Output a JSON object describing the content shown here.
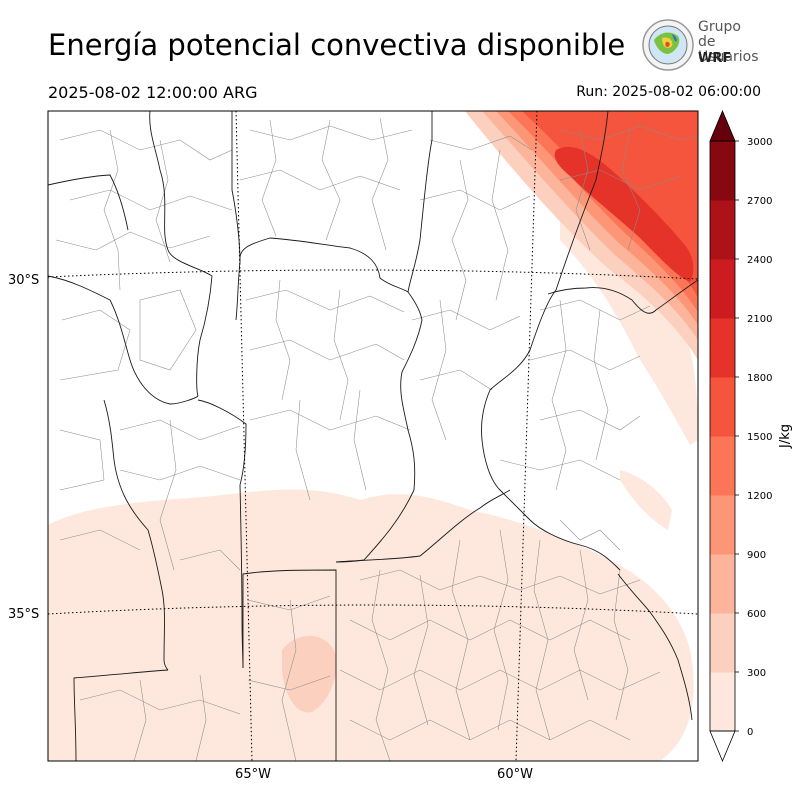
{
  "header": {
    "title": "Energía potencial convectiva disponible",
    "valid_time": "2025-08-02 12:00:00 ARG",
    "run_time": "Run: 2025-08-02 06:00:00"
  },
  "logo": {
    "line1": "Grupo de",
    "line2": "Usuarios",
    "line3": "WRF"
  },
  "map": {
    "lat_labels": [
      "30°S",
      "35°S"
    ],
    "lon_labels": [
      "65°W",
      "60°W"
    ]
  },
  "colorbar": {
    "label": "J/kg",
    "ticks": [
      "0",
      "300",
      "600",
      "900",
      "1200",
      "1500",
      "1800",
      "2100",
      "2400",
      "2700",
      "3000"
    ],
    "colors": [
      "#fee8dd",
      "#fcd0bf",
      "#fcb59a",
      "#fc9676",
      "#fb7556",
      "#f5553d",
      "#e6332a",
      "#cc1c1f",
      "#ad1217",
      "#860811"
    ],
    "over_color": "#67000d",
    "extend": "both"
  }
}
